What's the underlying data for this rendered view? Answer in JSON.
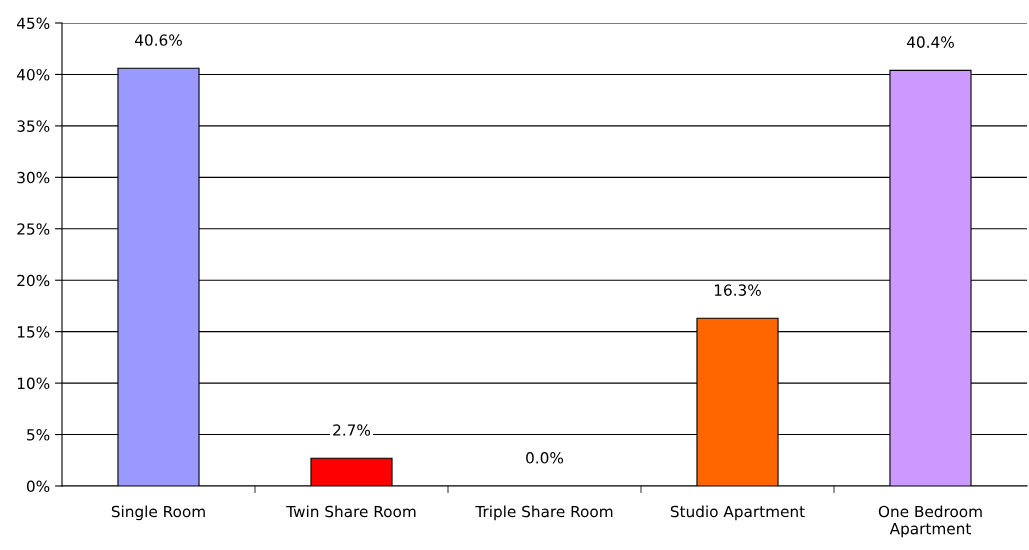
{
  "chart_data": {
    "type": "bar",
    "categories": [
      "Single Room",
      "Twin Share Room",
      "Triple Share Room",
      "Studio Apartment",
      "One Bedroom\nApartment"
    ],
    "values": [
      40.6,
      2.7,
      0.0,
      16.3,
      40.4
    ],
    "colors": [
      "#9999ff",
      "#ff0000",
      null,
      "#ff6600",
      "#cc99ff"
    ],
    "value_labels": [
      "40.6%",
      "2.7%",
      "0.0%",
      "16.3%",
      "40.4%"
    ],
    "ylim": [
      0,
      45
    ],
    "yticks": [
      {
        "value": 0,
        "label": "0%"
      },
      {
        "value": 5,
        "label": "5%"
      },
      {
        "value": 10,
        "label": "10%"
      },
      {
        "value": 15,
        "label": "15%"
      },
      {
        "value": 20,
        "label": "20%"
      },
      {
        "value": 25,
        "label": "25%"
      },
      {
        "value": 30,
        "label": "30%"
      },
      {
        "value": 35,
        "label": "35%"
      },
      {
        "value": 40,
        "label": "40%"
      },
      {
        "value": 45,
        "label": "45%"
      }
    ],
    "grid": "y",
    "legend": false
  }
}
